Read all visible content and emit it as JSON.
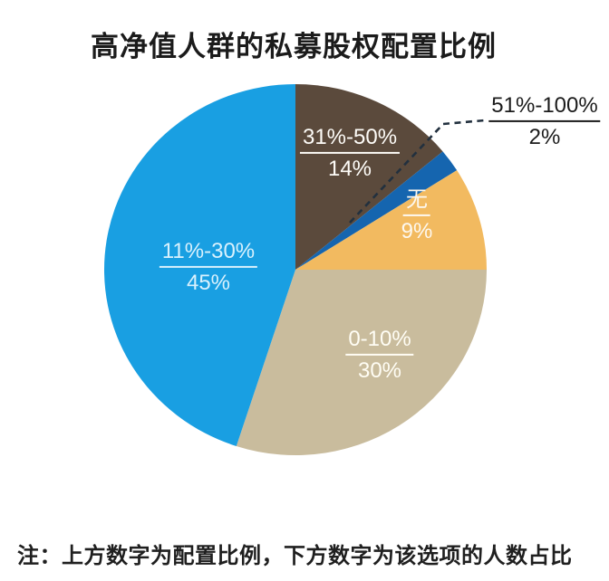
{
  "title": "高净值人群的私募股权配置比例",
  "footnote": "注：上方数字为配置比例，下方数字为该选项的人数占比",
  "chart_data": {
    "type": "pie",
    "title": "高净值人群的私募股权配置比例",
    "note": "注：上方数字为配置比例，下方数字为该选项的人数占比",
    "direction": "clockwise",
    "start_angle_deg": 0,
    "legend_position": "none",
    "leader_line_color": "#22303e",
    "background_color": "#ffffff",
    "slices": [
      {
        "range": "31%-50%",
        "share": "14%",
        "value": 14,
        "color": "#5b4a3c"
      },
      {
        "range": "51%-100%",
        "share": "2%",
        "value": 2,
        "color": "#1565af",
        "callout": true
      },
      {
        "range": "无",
        "share": "9%",
        "value": 9,
        "color": "#f2ba60"
      },
      {
        "range": "0-10%",
        "share": "30%",
        "value": 30,
        "color": "#c9bc9d"
      },
      {
        "range": "11%-30%",
        "share": "45%",
        "value": 45,
        "color": "#199fe2"
      }
    ]
  }
}
